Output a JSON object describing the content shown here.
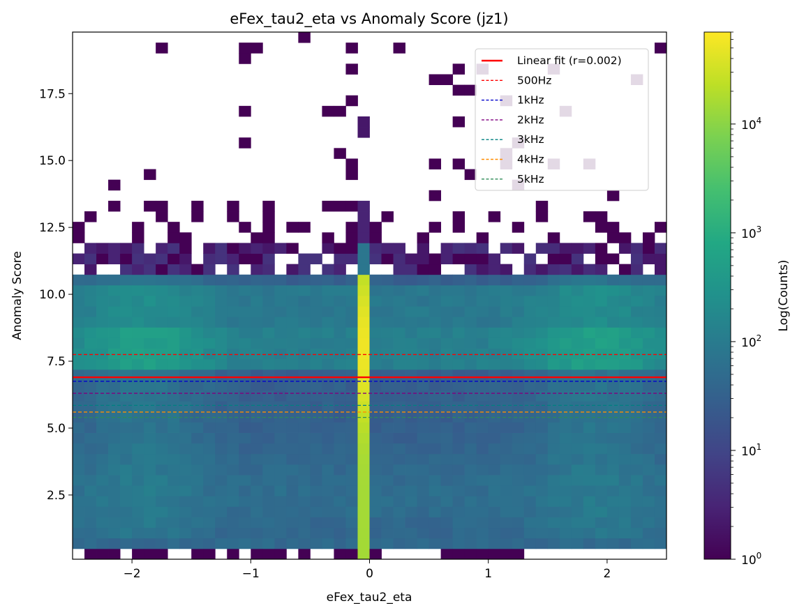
{
  "chart_data": {
    "type": "heatmap",
    "title": "eFex_tau2_eta vs Anomaly Score (jz1)",
    "xlabel": "eFex_tau2_eta",
    "ylabel": "Anomaly Score",
    "xlim": [
      -2.5,
      2.5
    ],
    "ylim": [
      0.1,
      19.8
    ],
    "xticks": [
      {
        "value": -2,
        "label": "−2"
      },
      {
        "value": -1,
        "label": "−1"
      },
      {
        "value": 0,
        "label": "0"
      },
      {
        "value": 1,
        "label": "1"
      },
      {
        "value": 2,
        "label": "2"
      }
    ],
    "yticks": [
      {
        "value": 2.5,
        "label": "2.5"
      },
      {
        "value": 5.0,
        "label": "5.0"
      },
      {
        "value": 7.5,
        "label": "7.5"
      },
      {
        "value": 10.0,
        "label": "10.0"
      },
      {
        "value": 12.5,
        "label": "12.5"
      },
      {
        "value": 15.0,
        "label": "15.0"
      },
      {
        "value": 17.5,
        "label": "17.5"
      }
    ],
    "colorbar": {
      "label": "Log(Counts)",
      "scale": "log",
      "colormap": "viridis",
      "range": [
        1,
        70000
      ],
      "ticks": [
        {
          "value": 1,
          "base": "10",
          "exp": "0"
        },
        {
          "value": 10,
          "base": "10",
          "exp": "1"
        },
        {
          "value": 100,
          "base": "10",
          "exp": "2"
        },
        {
          "value": 1000,
          "base": "10",
          "exp": "3"
        },
        {
          "value": 10000,
          "base": "10",
          "exp": "4"
        }
      ]
    },
    "bins": {
      "nx": 50,
      "ny": 50,
      "central_x": -0.05
    },
    "lines": [
      {
        "label": "Linear fit (r=0.002)",
        "y": 6.9,
        "color": "#ff0000",
        "style": "solid"
      },
      {
        "label": "500Hz",
        "y": 7.75,
        "color": "#ff0000",
        "style": "dashed"
      },
      {
        "label": "1kHz",
        "y": 6.75,
        "color": "#0000cc",
        "style": "dashed"
      },
      {
        "label": "2kHz",
        "y": 6.3,
        "color": "#800080",
        "style": "dashed"
      },
      {
        "label": "3kHz",
        "y": 5.85,
        "color": "#008080",
        "style": "dashed"
      },
      {
        "label": "4kHz",
        "y": 5.6,
        "color": "#ff8c00",
        "style": "dashed"
      },
      {
        "label": "5kHz",
        "y": 5.4,
        "color": "#2e8b57",
        "style": "dashed"
      }
    ],
    "grid": false,
    "legend": "top-right"
  }
}
